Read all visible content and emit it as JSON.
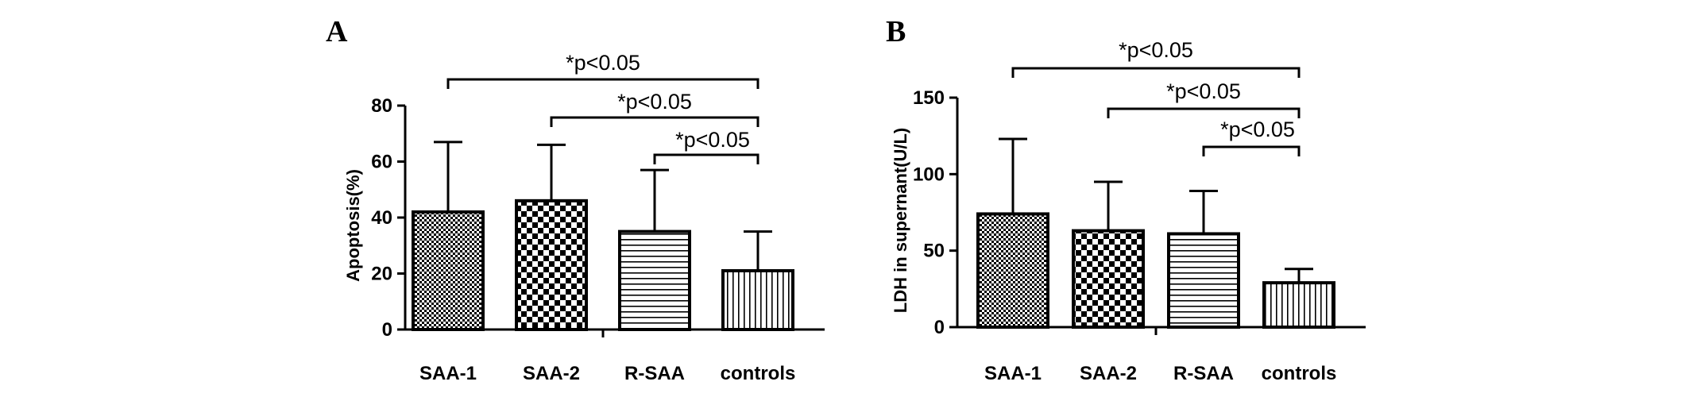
{
  "panels": [
    {
      "letter": "A"
    },
    {
      "letter": "B"
    }
  ],
  "chart_data": [
    {
      "type": "bar",
      "panel": "A",
      "categories": [
        "SAA-1",
        "SAA-2",
        "R-SAA",
        "controls"
      ],
      "values": [
        42,
        46,
        35,
        21
      ],
      "error_upper": [
        67,
        66,
        57,
        35
      ],
      "ylabel": "Apoptosis(%)",
      "xlabel": "",
      "ylim": [
        0,
        80
      ],
      "yticks": [
        0,
        20,
        40,
        60,
        80
      ],
      "patterns": [
        "fine-check",
        "checkerboard",
        "horizontal-lines",
        "vertical-lines"
      ],
      "annotations": [
        {
          "text": "*p<0.05",
          "from": "SAA-1",
          "to": "controls"
        },
        {
          "text": "*p<0.05",
          "from": "SAA-2",
          "to": "controls"
        },
        {
          "text": "*p<0.05",
          "from": "R-SAA",
          "to": "controls"
        }
      ]
    },
    {
      "type": "bar",
      "panel": "B",
      "categories": [
        "SAA-1",
        "SAA-2",
        "R-SAA",
        "controls"
      ],
      "values": [
        74,
        63,
        61,
        29
      ],
      "error_upper": [
        123,
        95,
        89,
        38
      ],
      "ylabel": "LDH in supernant(U/L)",
      "xlabel": "",
      "ylim": [
        0,
        150
      ],
      "yticks": [
        0,
        50,
        100,
        150
      ],
      "patterns": [
        "fine-check",
        "checkerboard",
        "horizontal-lines",
        "vertical-lines"
      ],
      "annotations": [
        {
          "text": "*p<0.05",
          "from": "SAA-1",
          "to": "controls"
        },
        {
          "text": "*p<0.05",
          "from": "SAA-2",
          "to": "controls"
        },
        {
          "text": "*p<0.05",
          "from": "R-SAA",
          "to": "controls"
        }
      ]
    }
  ]
}
